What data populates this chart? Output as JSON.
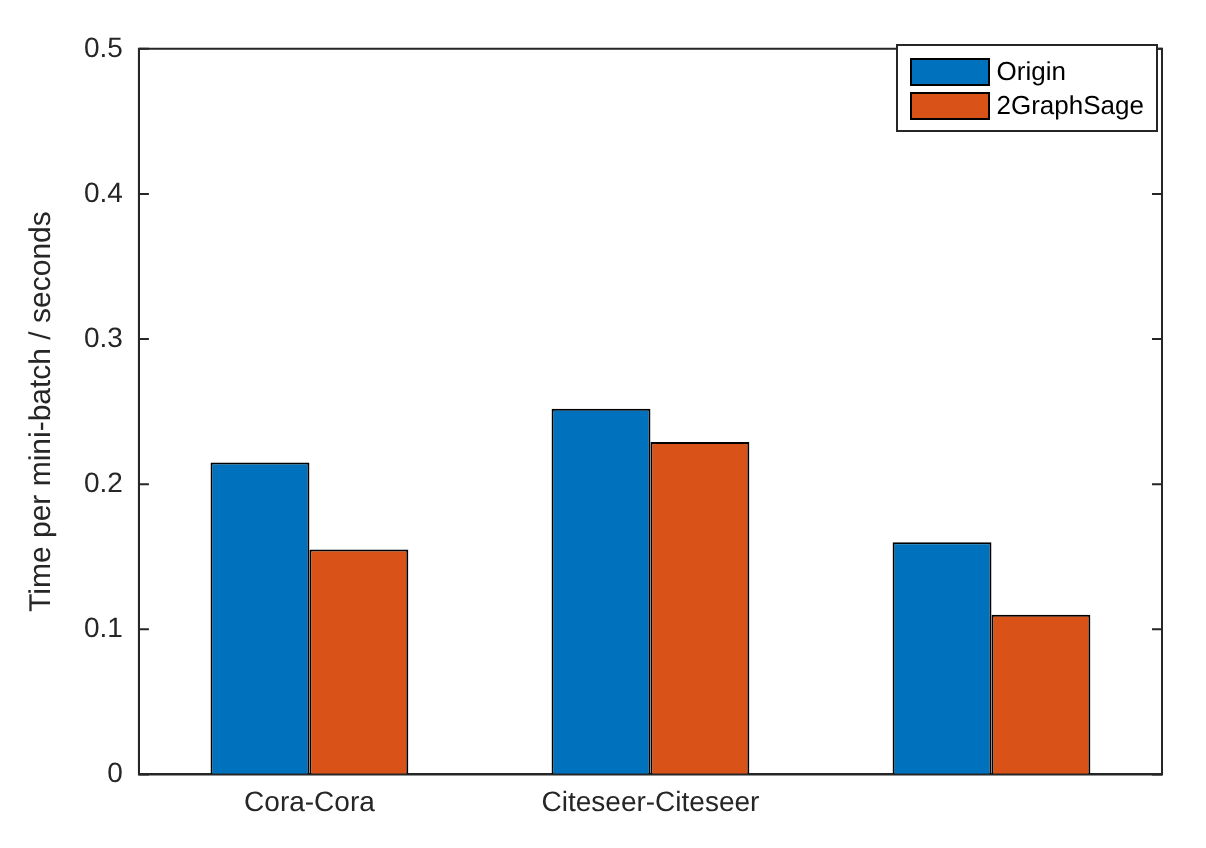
{
  "chart_data": {
    "type": "bar",
    "ylabel": "Time per mini-batch / seconds",
    "categories": [
      "Cora-Cora",
      "Citeseer-Citeseer",
      null
    ],
    "series": [
      {
        "name": "Origin",
        "color": "#0072bd",
        "values": [
          0.215,
          0.252,
          0.16
        ]
      },
      {
        "name": "2GraphSage",
        "color": "#d95319",
        "values": [
          0.155,
          0.229,
          0.11
        ]
      }
    ],
    "ylim": [
      0,
      0.5
    ],
    "yticks": [
      0,
      0.1,
      0.2,
      0.3,
      0.4,
      0.5
    ],
    "grid": false,
    "legend": "top right"
  }
}
